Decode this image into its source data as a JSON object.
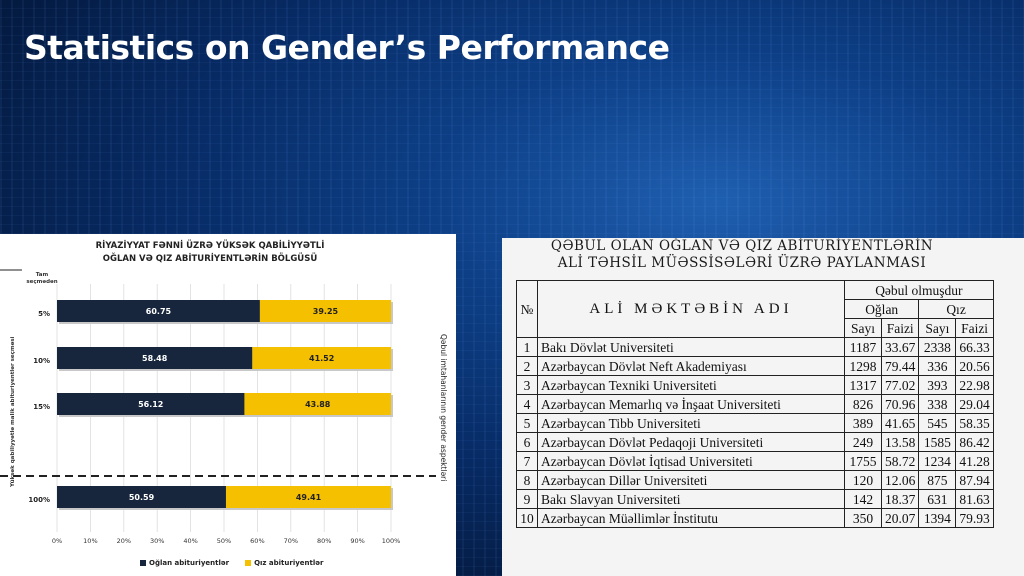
{
  "slide": {
    "title": "Statistics on Gender’s Performance"
  },
  "colors": {
    "boys": "#17263d",
    "girls": "#f5c000",
    "background": "#0a2d6b"
  },
  "left_chart": {
    "title_line1": "RİYAZİYYAT FƏNNİ ÜZRƏ YÜKSƏK QABİLİYYƏTLİ",
    "title_line2": "OĞLAN VƏ QIZ ABİTURİYENTLƏRİN BÖLGÜSÜ",
    "tam_label_line1": "Tam",
    "tam_label_line2": "seçmədən",
    "y_axis_title": "Yüksək qabiliyyətlə malik abituriyentlər seçməsi",
    "side_label": "Qəbul imtahanlarının gender aspektləri",
    "legend_boys": "Oğlan abituriyentlər",
    "legend_girls": "Qız abituriyentlər"
  },
  "chart_data": {
    "type": "bar",
    "orientation": "horizontal-stacked-100",
    "categories": [
      "5%",
      "10%",
      "15%",
      "100%"
    ],
    "series": [
      {
        "name": "Oğlan abituriyentlər",
        "values": [
          60.75,
          58.48,
          56.12,
          50.59
        ]
      },
      {
        "name": "Qız abituriyentlər",
        "values": [
          39.25,
          41.52,
          43.88,
          49.41
        ]
      }
    ],
    "x_ticks": [
      "0%",
      "10%",
      "20%",
      "30%",
      "40%",
      "50%",
      "60%",
      "70%",
      "80%",
      "90%",
      "100%"
    ],
    "xlim": [
      0,
      100
    ],
    "grid": true,
    "legend": "bottom"
  },
  "right_table": {
    "title_line1": "QƏBUL OLAN OĞLAN VƏ QIZ ABİTURİYENTLƏRİN",
    "title_line2": "ALİ TƏHSİL MÜƏSSİSƏLƏRİ ÜZRƏ PAYLANMASI",
    "col_no": "№",
    "col_name": "ALİ MƏKTƏBİN ADI",
    "col_group": "Qəbul olmuşdur",
    "col_boys": "Oğlan",
    "col_girls": "Qız",
    "col_count1": "Sayı",
    "col_pct1": "Faizi",
    "col_count2": "Sayı",
    "col_pct2": "Faizi",
    "rows": [
      {
        "no": "1",
        "name": "Bakı Dövlət Universiteti",
        "b_count": "1187",
        "b_pct": "33.67",
        "g_count": "2338",
        "g_pct": "66.33"
      },
      {
        "no": "2",
        "name": "Azərbaycan Dövlət Neft Akademiyası",
        "b_count": "1298",
        "b_pct": "79.44",
        "g_count": "336",
        "g_pct": "20.56"
      },
      {
        "no": "3",
        "name": "Azərbaycan Texniki Universiteti",
        "b_count": "1317",
        "b_pct": "77.02",
        "g_count": "393",
        "g_pct": "22.98"
      },
      {
        "no": "4",
        "name": "Azərbaycan Memarlıq və İnşaat Universiteti",
        "b_count": "826",
        "b_pct": "70.96",
        "g_count": "338",
        "g_pct": "29.04"
      },
      {
        "no": "5",
        "name": "Azərbaycan Tibb Universiteti",
        "b_count": "389",
        "b_pct": "41.65",
        "g_count": "545",
        "g_pct": "58.35"
      },
      {
        "no": "6",
        "name": "Azərbaycan Dövlət Pedaqoji Universiteti",
        "b_count": "249",
        "b_pct": "13.58",
        "g_count": "1585",
        "g_pct": "86.42"
      },
      {
        "no": "7",
        "name": "Azərbaycan Dövlət İqtisad Universiteti",
        "b_count": "1755",
        "b_pct": "58.72",
        "g_count": "1234",
        "g_pct": "41.28"
      },
      {
        "no": "8",
        "name": "Azərbaycan Dillər Universiteti",
        "b_count": "120",
        "b_pct": "12.06",
        "g_count": "875",
        "g_pct": "87.94"
      },
      {
        "no": "9",
        "name": "Bakı Slavyan Universiteti",
        "b_count": "142",
        "b_pct": "18.37",
        "g_count": "631",
        "g_pct": "81.63"
      },
      {
        "no": "10",
        "name": "Azərbaycan Müəllimlər İnstitutu",
        "b_count": "350",
        "b_pct": "20.07",
        "g_count": "1394",
        "g_pct": "79.93"
      }
    ]
  }
}
